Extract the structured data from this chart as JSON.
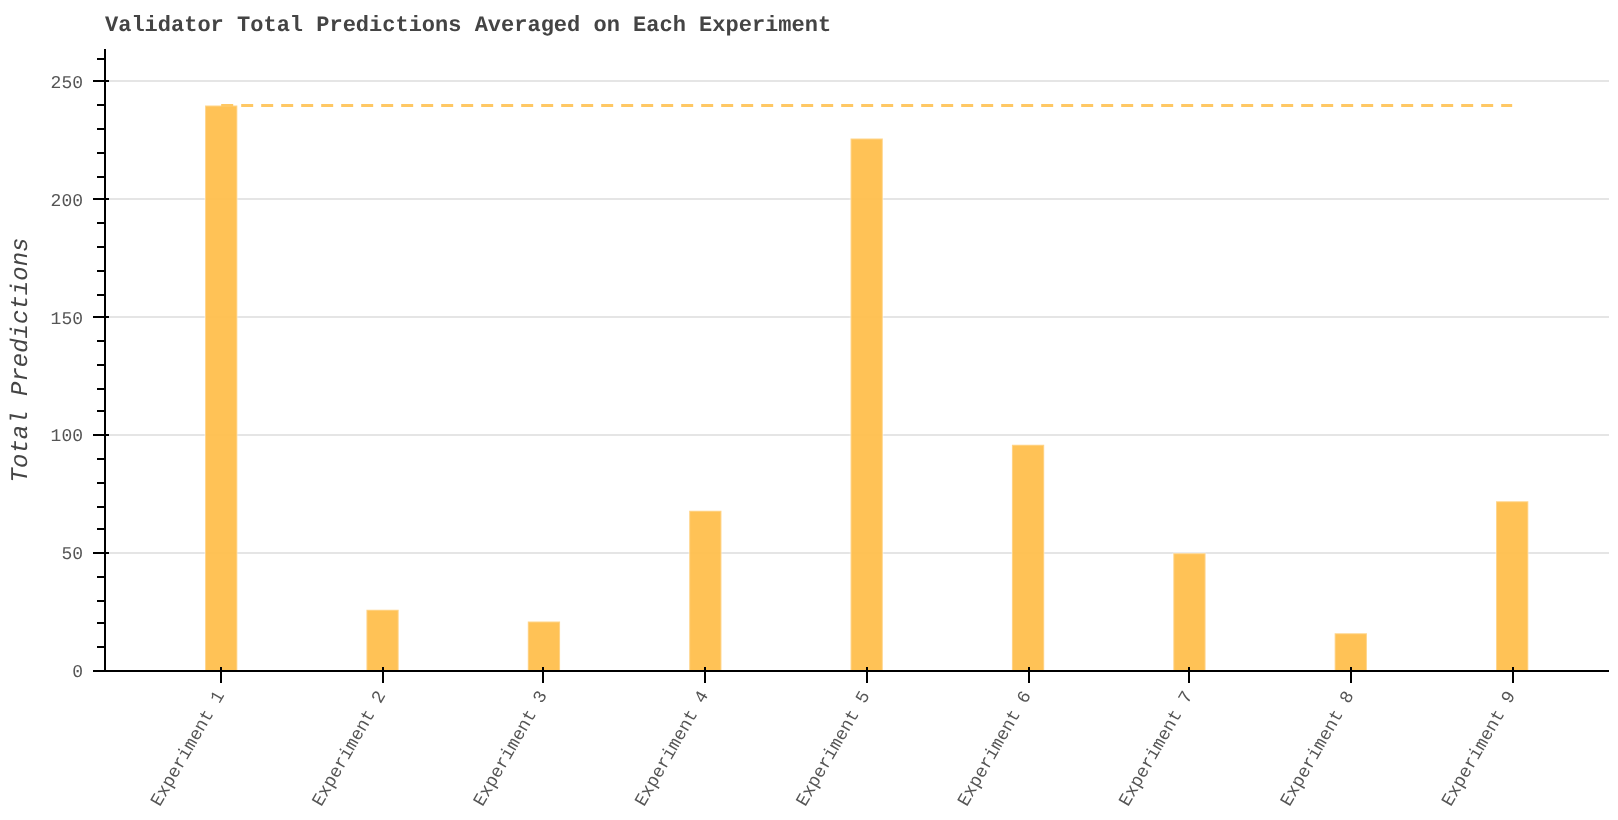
{
  "chart_data": {
    "type": "bar",
    "title": "Validator Total Predictions Averaged on Each Experiment",
    "ylabel": "Total Predictions",
    "categories": [
      "Experiment 1",
      "Experiment 2",
      "Experiment 3",
      "Experiment 4",
      "Experiment 5",
      "Experiment 6",
      "Experiment 7",
      "Experiment 8",
      "Experiment 9"
    ],
    "values": [
      240,
      26,
      21,
      68,
      226,
      96,
      50,
      16,
      72
    ],
    "color": "#ffbf4d",
    "ylim": [
      0,
      264
    ],
    "yticks": [
      0,
      50,
      100,
      150,
      200,
      250
    ],
    "grid": "y",
    "ref_lines": [
      {
        "axis": "y",
        "value": 240,
        "label": null,
        "color": "#ffc864",
        "line_style": "dashed"
      }
    ]
  }
}
